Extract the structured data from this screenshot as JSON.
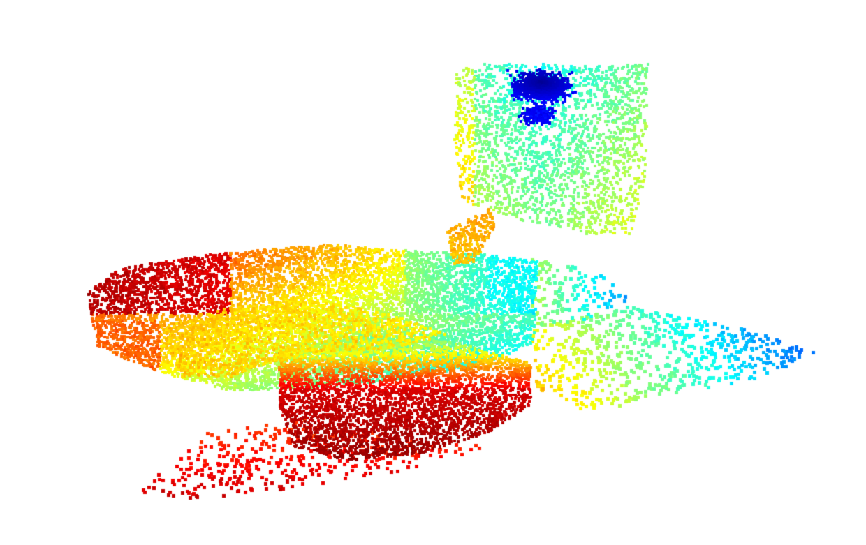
{
  "scene": {
    "kind": "point-cloud-render",
    "background_color": "#ffffff",
    "colormap": {
      "name": "jet",
      "stops": [
        "#00007f",
        "#0000ff",
        "#007fff",
        "#00ffff",
        "#7fff7f",
        "#ffff00",
        "#ff7f00",
        "#ff0000",
        "#7f0000"
      ]
    },
    "objects": [
      {
        "name": "vertical-panel",
        "dominant_colors": [
          "#00007f",
          "#0000ff",
          "#00ffff",
          "#7fff7f",
          "#ffff00",
          "#ff7f00"
        ]
      },
      {
        "name": "table-surface",
        "dominant_colors": [
          "#7f0000",
          "#ff0000",
          "#ff7f00",
          "#ffff00",
          "#7fff7f",
          "#00ffff"
        ]
      },
      {
        "name": "floor-plane",
        "dominant_colors": [
          "#ff0000",
          "#ff7f00",
          "#7fff7f",
          "#00ffff",
          "#007fff"
        ]
      }
    ]
  }
}
